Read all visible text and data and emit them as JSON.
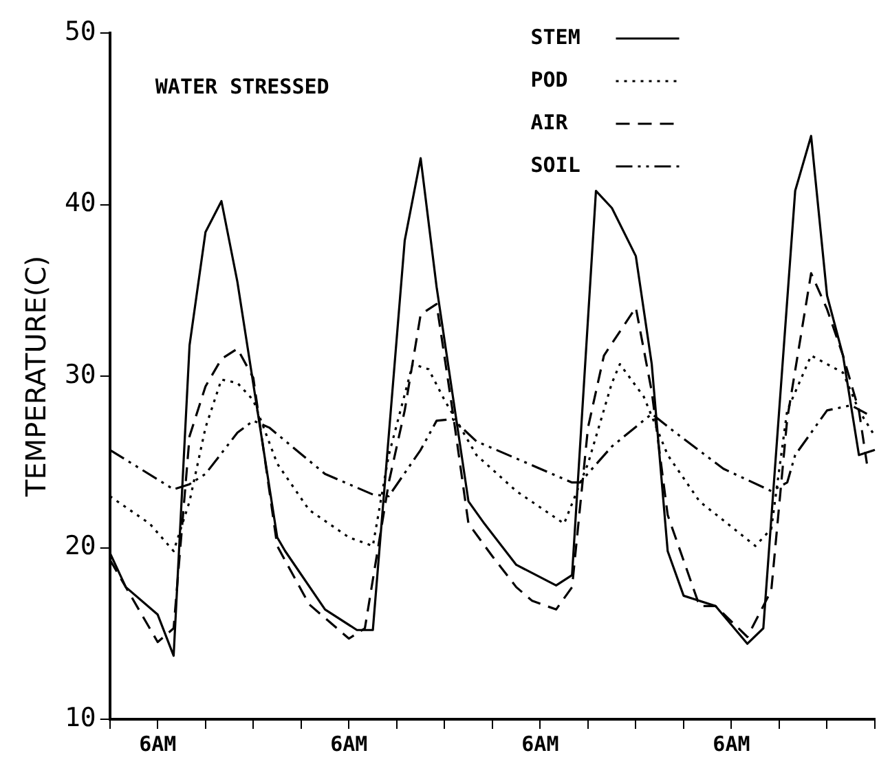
{
  "chart_data": {
    "type": "line",
    "ylabel": "TEMPERATURE(C)",
    "annotations": [
      "WATER STRESSED"
    ],
    "categories": [
      null,
      null,
      null,
      null,
      null,
      null,
      "6AM",
      null,
      null,
      null,
      null,
      null,
      null,
      null,
      null,
      null,
      null,
      null,
      null,
      null,
      null,
      null,
      null,
      null,
      null,
      null,
      null,
      null,
      null,
      null,
      "6AM",
      null,
      null,
      null,
      null,
      null,
      null,
      null,
      null,
      null,
      null,
      null,
      null,
      null,
      null,
      null,
      null,
      null,
      null,
      null,
      null,
      null,
      null,
      null,
      "6AM",
      null,
      null,
      null,
      null,
      null,
      null,
      null,
      null,
      null,
      null,
      null,
      null,
      null,
      null,
      null,
      null,
      null,
      null,
      null,
      null,
      null,
      null,
      null,
      "6AM",
      null,
      null,
      null,
      null,
      null,
      null,
      null,
      null,
      null,
      null,
      null,
      null,
      null,
      null,
      null,
      null,
      null,
      null
    ],
    "ylim": [
      10,
      50
    ],
    "yticks": [
      10,
      20,
      30,
      40,
      50
    ],
    "grid": false,
    "legend": "top right",
    "marker": "none",
    "series": [
      {
        "name": "STEM",
        "color": "#000000",
        "line_style": "solid",
        "values": [
          19.7,
          null,
          17.7,
          null,
          null,
          null,
          16.1,
          null,
          13.7,
          null,
          31.8,
          null,
          38.4,
          null,
          40.2,
          null,
          35.5,
          null,
          null,
          null,
          null,
          20.6,
          19.8,
          null,
          null,
          null,
          null,
          16.4,
          null,
          null,
          null,
          15.2,
          null,
          15.2,
          null,
          null,
          null,
          37.9,
          null,
          42.7,
          null,
          35.2,
          null,
          null,
          null,
          22.7,
          null,
          21.4,
          null,
          null,
          null,
          19.0,
          null,
          null,
          null,
          null,
          17.8,
          null,
          18.4,
          null,
          null,
          40.8,
          null,
          39.8,
          null,
          null,
          37.0,
          null,
          30.7,
          null,
          19.8,
          null,
          17.2,
          null,
          null,
          null,
          16.6,
          null,
          null,
          null,
          14.4,
          null,
          15.3,
          null,
          null,
          null,
          40.8,
          null,
          44.0,
          null,
          34.7,
          null,
          31.2,
          null,
          25.4,
          null,
          25.7
        ]
      },
      {
        "name": "POD",
        "color": "#000000",
        "line_style": "dotted",
        "values": [
          23.0,
          null,
          null,
          null,
          null,
          21.4,
          null,
          null,
          19.8,
          null,
          22.7,
          null,
          27.0,
          null,
          29.8,
          null,
          29.6,
          null,
          28.6,
          null,
          null,
          24.9,
          null,
          null,
          null,
          22.2,
          null,
          null,
          null,
          null,
          20.6,
          null,
          null,
          20.1,
          null,
          25.4,
          null,
          null,
          30.7,
          null,
          30.4,
          null,
          28.6,
          null,
          null,
          null,
          25.4,
          null,
          null,
          null,
          null,
          23.3,
          null,
          null,
          null,
          null,
          null,
          21.4,
          null,
          null,
          24.9,
          null,
          null,
          29.6,
          30.7,
          null,
          null,
          28.8,
          null,
          null,
          25.4,
          null,
          null,
          null,
          22.7,
          null,
          null,
          null,
          null,
          null,
          null,
          20.1,
          null,
          21.1,
          null,
          28.0,
          null,
          null,
          31.2,
          null,
          null,
          null,
          30.2,
          null,
          28.0,
          null,
          26.5
        ]
      },
      {
        "name": "AIR",
        "color": "#000000",
        "line_style": "dashed",
        "values": [
          19.3,
          null,
          null,
          null,
          16.1,
          null,
          14.5,
          null,
          15.3,
          null,
          26.5,
          null,
          29.4,
          null,
          31.0,
          null,
          31.6,
          null,
          29.9,
          null,
          null,
          20.1,
          null,
          null,
          null,
          16.7,
          null,
          null,
          null,
          null,
          14.7,
          null,
          15.3,
          null,
          null,
          23.8,
          null,
          28.0,
          null,
          33.6,
          null,
          34.2,
          null,
          28.0,
          null,
          21.4,
          null,
          null,
          19.5,
          null,
          null,
          17.7,
          null,
          16.9,
          null,
          null,
          16.4,
          null,
          17.7,
          null,
          27.0,
          null,
          31.2,
          null,
          null,
          null,
          34.0,
          null,
          29.1,
          null,
          21.9,
          null,
          null,
          null,
          16.6,
          null,
          16.6,
          null,
          null,
          null,
          14.8,
          null,
          null,
          17.5,
          null,
          27.5,
          null,
          null,
          36.0,
          null,
          33.9,
          null,
          31.2,
          null,
          28.0,
          24.9,
          null
        ]
      },
      {
        "name": "SOIL",
        "color": "#000000",
        "line_style": "dashdot",
        "values": [
          25.7,
          null,
          null,
          null,
          null,
          null,
          null,
          null,
          23.4,
          null,
          23.7,
          null,
          24.3,
          null,
          null,
          null,
          26.7,
          null,
          27.4,
          null,
          27.0,
          null,
          null,
          null,
          null,
          null,
          null,
          24.3,
          null,
          null,
          null,
          null,
          null,
          23.1,
          null,
          23.0,
          null,
          null,
          null,
          25.7,
          null,
          27.4,
          null,
          27.5,
          null,
          null,
          26.2,
          null,
          null,
          null,
          null,
          null,
          null,
          null,
          24.6,
          null,
          null,
          null,
          23.8,
          23.8,
          null,
          null,
          null,
          25.9,
          null,
          null,
          null,
          null,
          27.8,
          null,
          null,
          26.7,
          null,
          null,
          null,
          null,
          null,
          24.6,
          null,
          null,
          null,
          null,
          null,
          23.3,
          null,
          23.8,
          25.4,
          null,
          null,
          null,
          28.0,
          null,
          null,
          28.3,
          null,
          27.8,
          null
        ]
      }
    ]
  }
}
